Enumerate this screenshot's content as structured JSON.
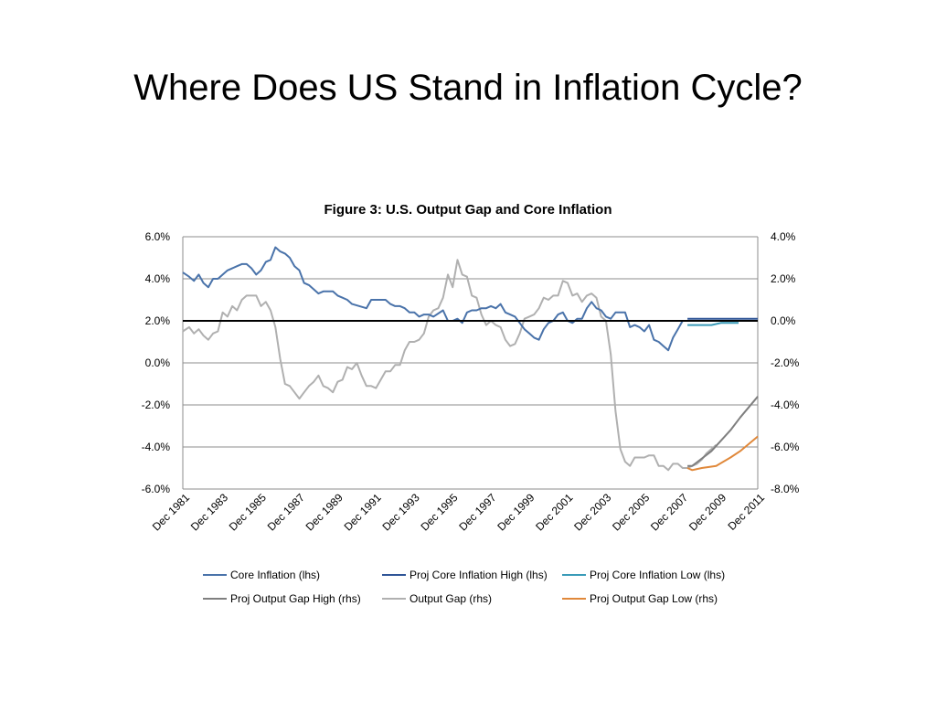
{
  "slide": {
    "title": "Where Does US Stand in Inflation Cycle?"
  },
  "colors": {
    "core_inflation": "#4a73aa",
    "proj_core_high": "#2f5597",
    "proj_core_low": "#3a9bb8",
    "proj_gap_high": "#7f7f7f",
    "output_gap": "#b0b0b0",
    "proj_gap_low": "#e0883a",
    "zero_line": "#000000",
    "grid": "#8c8c8c"
  },
  "chart_data": {
    "type": "line",
    "title": "Figure 3: U.S. Output Gap and Core Inflation",
    "grid": true,
    "legend_position": "bottom",
    "x_range": [
      1981.92,
      2011.92
    ],
    "x_tick_labels": [
      "Dec 1981",
      "Dec 1983",
      "Dec 1985",
      "Dec 1987",
      "Dec 1989",
      "Dec 1991",
      "Dec 1993",
      "Dec 1995",
      "Dec 1997",
      "Dec 1999",
      "Dec 2001",
      "Dec 2003",
      "Dec 2005",
      "Dec 2007",
      "Dec 2009",
      "Dec 2011"
    ],
    "x_tick_values": [
      1981.92,
      1983.92,
      1985.92,
      1987.92,
      1989.92,
      1991.92,
      1993.92,
      1995.92,
      1997.92,
      1999.92,
      2001.92,
      2003.92,
      2005.92,
      2007.92,
      2009.92,
      2011.92
    ],
    "y_left": {
      "label": "",
      "range": [
        -6,
        6
      ],
      "ticks": [
        6,
        4,
        2,
        0,
        -2,
        -4,
        -6
      ],
      "tick_labels": [
        "6.0%",
        "4.0%",
        "2.0%",
        "0.0%",
        "-2.0%",
        "-4.0%",
        "-6.0%"
      ]
    },
    "y_right": {
      "label": "",
      "range": [
        -8,
        4
      ],
      "ticks": [
        4,
        2,
        0,
        -2,
        -4,
        -6,
        -8
      ],
      "tick_labels": [
        "4.0%",
        "2.0%",
        "0.0%",
        "-2.0%",
        "-4.0%",
        "-6.0%",
        "-8.0%"
      ]
    },
    "reference_line": {
      "axis": "right",
      "value": 0
    },
    "series": [
      {
        "name": "Core Inflation (lhs)",
        "axis": "left",
        "color_key": "core_inflation",
        "x": [
          1981.92,
          1982.25,
          1982.5,
          1982.75,
          1983.0,
          1983.25,
          1983.5,
          1983.75,
          1984.25,
          1984.75,
          1985.0,
          1985.25,
          1985.5,
          1985.75,
          1986.0,
          1986.25,
          1986.5,
          1986.75,
          1987.0,
          1987.25,
          1987.5,
          1987.75,
          1988.0,
          1988.25,
          1988.5,
          1989.0,
          1989.25,
          1989.75,
          1990.0,
          1990.25,
          1990.5,
          1990.75,
          1991.5,
          1991.75,
          1992.0,
          1992.5,
          1992.75,
          1993.0,
          1993.25,
          1993.5,
          1993.75,
          1994.0,
          1994.25,
          1994.5,
          1994.75,
          1995.0,
          1995.5,
          1995.75,
          1996.0,
          1996.25,
          1996.5,
          1996.75,
          1997.0,
          1997.25,
          1997.5,
          1997.75,
          1998.0,
          1998.25,
          1998.5,
          1998.75,
          1999.0,
          1999.25,
          1999.5,
          1999.75,
          2000.0,
          2000.25,
          2000.5,
          2000.75,
          2001.0,
          2001.25,
          2001.5,
          2001.75,
          2002.0,
          2002.25,
          2002.5,
          2002.75,
          2003.0,
          2003.25,
          2003.5,
          2003.75,
          2004.0,
          2004.25,
          2004.5,
          2004.75,
          2005.0,
          2005.25,
          2005.5,
          2005.75,
          2006.0,
          2006.25,
          2006.5,
          2006.75,
          2007.0,
          2007.25,
          2007.5,
          2007.75,
          2008.0
        ],
        "y": [
          4.3,
          4.1,
          3.9,
          4.2,
          3.8,
          3.6,
          4.0,
          4.0,
          4.4,
          4.6,
          4.7,
          4.7,
          4.5,
          4.2,
          4.4,
          4.8,
          4.9,
          5.5,
          5.3,
          5.2,
          5.0,
          4.6,
          4.4,
          3.8,
          3.7,
          3.3,
          3.4,
          3.4,
          3.2,
          3.1,
          3.0,
          2.8,
          2.6,
          3.0,
          3.0,
          3.0,
          2.8,
          2.7,
          2.7,
          2.6,
          2.4,
          2.4,
          2.2,
          2.3,
          2.3,
          2.2,
          2.5,
          2.0,
          2.0,
          2.1,
          1.9,
          2.4,
          2.5,
          2.5,
          2.6,
          2.6,
          2.7,
          2.6,
          2.8,
          2.4,
          2.3,
          2.2,
          1.9,
          1.6,
          1.4,
          1.2,
          1.1,
          1.6,
          1.9,
          2.0,
          2.3,
          2.4,
          2.0,
          1.9,
          2.1,
          2.1,
          2.6,
          2.9,
          2.6,
          2.5,
          2.2,
          2.1,
          2.4,
          2.4,
          2.4,
          1.7,
          1.8,
          1.7,
          1.5,
          1.8,
          1.1,
          1.0,
          0.8,
          0.6,
          1.2,
          1.6,
          2.0
        ]
      },
      {
        "name": "Proj Core Inflation High (lhs)",
        "axis": "left",
        "color_key": "proj_core_high",
        "x": [
          2008.25,
          2009.0,
          2010.0,
          2011.0,
          2011.92
        ],
        "y": [
          2.1,
          2.1,
          2.1,
          2.1,
          2.1
        ]
      },
      {
        "name": "Proj Core Inflation Low (lhs)",
        "axis": "left",
        "color_key": "proj_core_low",
        "x": [
          2008.25,
          2009.0,
          2009.5,
          2010.0,
          2010.5,
          2010.92
        ],
        "y": [
          1.8,
          1.8,
          1.8,
          1.9,
          1.9,
          1.9
        ]
      },
      {
        "name": "Proj Output Gap High (rhs)",
        "axis": "right",
        "color_key": "proj_gap_high",
        "x": [
          2008.25,
          2008.5,
          2009.5,
          2010.5,
          2011.0,
          2011.92
        ],
        "y": [
          -6.9,
          -6.9,
          -6.2,
          -5.2,
          -4.6,
          -3.6
        ]
      },
      {
        "name": "Output Gap (rhs)",
        "axis": "right",
        "color_key": "output_gap",
        "x": [
          1981.92,
          1982.25,
          1982.5,
          1982.75,
          1983.0,
          1983.25,
          1983.5,
          1983.75,
          1984.0,
          1984.25,
          1984.5,
          1984.75,
          1985.0,
          1985.25,
          1985.5,
          1985.75,
          1986.0,
          1986.25,
          1986.5,
          1986.75,
          1987.0,
          1987.25,
          1987.5,
          1987.75,
          1988.0,
          1988.25,
          1988.5,
          1988.75,
          1989.0,
          1989.25,
          1989.5,
          1989.75,
          1990.0,
          1990.25,
          1990.5,
          1990.75,
          1991.0,
          1991.25,
          1991.5,
          1991.75,
          1992.0,
          1992.5,
          1992.75,
          1993.0,
          1993.25,
          1993.5,
          1993.75,
          1994.0,
          1994.25,
          1994.5,
          1994.75,
          1995.0,
          1995.25,
          1995.5,
          1995.75,
          1996.0,
          1996.25,
          1996.5,
          1996.75,
          1997.0,
          1997.25,
          1997.5,
          1997.75,
          1998.0,
          1998.25,
          1998.5,
          1998.75,
          1999.0,
          1999.25,
          1999.5,
          1999.75,
          2000.0,
          2000.25,
          2000.5,
          2000.75,
          2001.0,
          2001.25,
          2001.5,
          2001.75,
          2002.0,
          2002.25,
          2002.5,
          2002.75,
          2003.0,
          2003.25,
          2003.5,
          2003.75,
          2004.0,
          2004.25,
          2004.5,
          2004.75,
          2005.0,
          2005.25,
          2005.5,
          2005.75,
          2006.0,
          2006.25,
          2006.5,
          2006.75,
          2007.0,
          2007.25,
          2007.5,
          2007.75,
          2008.0,
          2008.25,
          2008.5,
          2008.75,
          2009.0,
          2009.25,
          2009.5,
          2009.75
        ],
        "y": [
          -0.5,
          -0.3,
          -0.6,
          -0.4,
          -0.7,
          -0.9,
          -0.6,
          -0.5,
          0.4,
          0.2,
          0.7,
          0.5,
          1.0,
          1.2,
          1.2,
          1.2,
          0.7,
          0.9,
          0.5,
          -0.3,
          -1.8,
          -3.0,
          -3.1,
          -3.4,
          -3.7,
          -3.4,
          -3.1,
          -2.9,
          -2.6,
          -3.1,
          -3.2,
          -3.4,
          -2.9,
          -2.8,
          -2.2,
          -2.3,
          -2.0,
          -2.6,
          -3.1,
          -3.1,
          -3.2,
          -2.4,
          -2.4,
          -2.1,
          -2.1,
          -1.4,
          -1.0,
          -1.0,
          -0.9,
          -0.6,
          0.2,
          0.5,
          0.6,
          1.1,
          2.2,
          1.6,
          2.9,
          2.2,
          2.1,
          1.2,
          1.1,
          0.3,
          -0.2,
          0.0,
          -0.2,
          -0.3,
          -0.9,
          -1.2,
          -1.1,
          -0.6,
          0.1,
          0.2,
          0.3,
          0.6,
          1.1,
          1.0,
          1.2,
          1.2,
          1.9,
          1.8,
          1.2,
          1.3,
          0.9,
          1.2,
          1.3,
          1.1,
          0.2,
          0.0,
          -1.6,
          -4.3,
          -6.1,
          -6.7,
          -6.9,
          -6.5,
          -6.5,
          -6.5,
          -6.4,
          -6.4,
          -6.9,
          -6.9,
          -7.1,
          -6.8,
          -6.8,
          -7.0,
          -7.0,
          -6.9,
          -6.8,
          -6.6,
          -6.3,
          -6.1,
          -5.9
        ]
      },
      {
        "name": "Proj Output Gap Low (rhs)",
        "axis": "right",
        "color_key": "proj_gap_low",
        "x": [
          2008.25,
          2008.5,
          2009.0,
          2009.75,
          2010.5,
          2011.0,
          2011.92
        ],
        "y": [
          -7.0,
          -7.1,
          -7.0,
          -6.9,
          -6.5,
          -6.2,
          -5.5
        ]
      }
    ],
    "legend": {
      "rows": [
        [
          "Core Inflation (lhs)",
          "Proj Core Inflation High (lhs)",
          "Proj Core Inflation Low (lhs)"
        ],
        [
          "Proj Output Gap High (rhs)",
          "Output Gap (rhs)",
          "Proj Output Gap Low (rhs)"
        ]
      ]
    }
  }
}
